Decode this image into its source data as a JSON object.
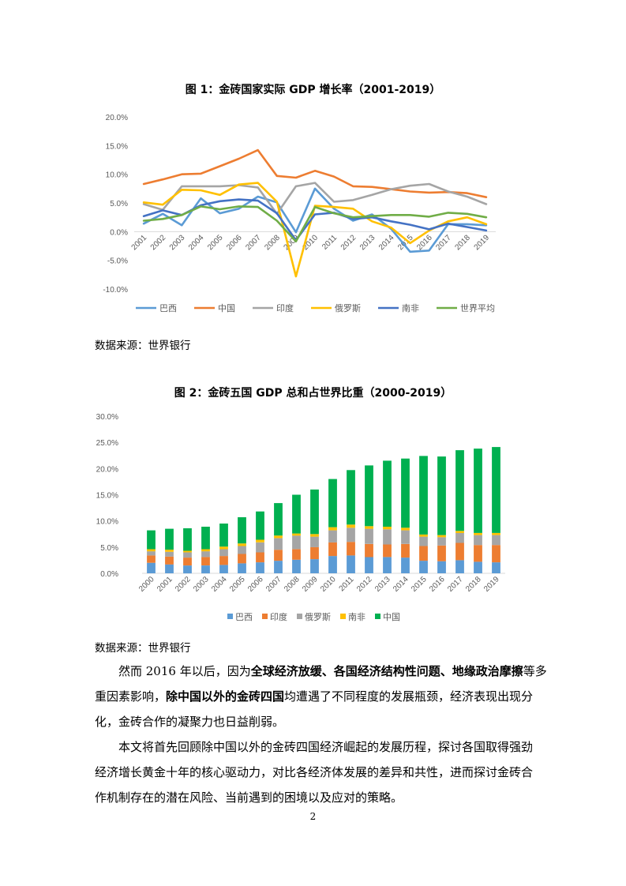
{
  "figure1": {
    "title": "图 1：金砖国家实际 GDP 增长率（2001-2019）",
    "source": "数据来源：世界银行",
    "chart_data": {
      "type": "line",
      "title": "图 1：金砖国家实际 GDP 增长率（2001-2019）",
      "categories": [
        "2001",
        "2002",
        "2003",
        "2004",
        "2005",
        "2006",
        "2007",
        "2008",
        "2009",
        "2010",
        "2011",
        "2012",
        "2013",
        "2014",
        "2015",
        "2016",
        "2017",
        "2018",
        "2019"
      ],
      "ylim": [
        -10,
        20
      ],
      "yticks": [
        "20.0%",
        "15.0%",
        "10.0%",
        "5.0%",
        "0.0%",
        "-5.0%",
        "-10.0%"
      ],
      "legend_position": "bottom",
      "series": [
        {
          "name": "巴西",
          "color": "#5b9bd5",
          "values": [
            1.4,
            3.1,
            1.1,
            5.8,
            3.2,
            4.0,
            6.1,
            5.1,
            -0.1,
            7.5,
            4.0,
            1.9,
            3.0,
            0.5,
            -3.5,
            -3.3,
            1.3,
            1.3,
            1.1
          ]
        },
        {
          "name": "中国",
          "color": "#ed7d31",
          "values": [
            8.3,
            9.1,
            10.0,
            10.1,
            11.4,
            12.7,
            14.2,
            9.7,
            9.4,
            10.6,
            9.6,
            7.9,
            7.8,
            7.4,
            7.0,
            6.8,
            6.9,
            6.7,
            6.0
          ]
        },
        {
          "name": "印度",
          "color": "#a5a5a5",
          "values": [
            4.8,
            3.8,
            7.9,
            7.9,
            7.9,
            8.1,
            7.7,
            3.1,
            7.9,
            8.5,
            5.2,
            5.5,
            6.4,
            7.4,
            8.0,
            8.3,
            7.0,
            6.1,
            4.8
          ]
        },
        {
          "name": "俄罗斯",
          "color": "#ffc000",
          "values": [
            5.1,
            4.7,
            7.3,
            7.2,
            6.4,
            8.2,
            8.5,
            5.2,
            -7.8,
            4.5,
            4.3,
            4.0,
            1.8,
            0.7,
            -2.0,
            0.2,
            1.8,
            2.5,
            1.3
          ]
        },
        {
          "name": "南非",
          "color": "#4472c4",
          "values": [
            2.7,
            3.7,
            2.9,
            4.6,
            5.3,
            5.6,
            5.4,
            3.2,
            -1.5,
            3.0,
            3.3,
            2.2,
            2.5,
            1.8,
            1.2,
            0.4,
            1.4,
            0.8,
            0.2
          ]
        },
        {
          "name": "世界平均",
          "color": "#70ad47",
          "values": [
            1.9,
            2.2,
            2.9,
            4.4,
            3.9,
            4.4,
            4.3,
            1.9,
            -1.7,
            4.3,
            3.2,
            2.5,
            2.7,
            2.9,
            2.9,
            2.6,
            3.3,
            3.1,
            2.5
          ]
        }
      ]
    }
  },
  "figure2": {
    "title": "图 2：金砖五国 GDP 总和占世界比重（2000-2019）",
    "source": "数据来源：世界银行",
    "chart_data": {
      "type": "bar",
      "stacked": true,
      "title": "图 2：金砖五国 GDP 总和占世界比重（2000-2019）",
      "categories": [
        "2000",
        "2001",
        "2002",
        "2003",
        "2004",
        "2005",
        "2006",
        "2007",
        "2008",
        "2009",
        "2010",
        "2011",
        "2012",
        "2013",
        "2014",
        "2015",
        "2016",
        "2017",
        "2018",
        "2019"
      ],
      "ylim": [
        0,
        30
      ],
      "yticks": [
        "30.0%",
        "25.0%",
        "20.0%",
        "15.0%",
        "10.0%",
        "5.0%",
        "0.0%"
      ],
      "legend_position": "bottom",
      "series": [
        {
          "name": "巴西",
          "color": "#5b9bd5",
          "values": [
            2.0,
            1.7,
            1.5,
            1.5,
            1.6,
            1.9,
            2.1,
            2.4,
            2.6,
            2.7,
            3.3,
            3.4,
            3.1,
            3.1,
            3.0,
            2.4,
            2.3,
            2.5,
            2.2,
            2.1
          ]
        },
        {
          "name": "印度",
          "color": "#ed7d31",
          "values": [
            1.4,
            1.5,
            1.5,
            1.6,
            1.7,
            1.8,
            1.9,
            2.1,
            2.0,
            2.3,
            2.6,
            2.6,
            2.5,
            2.4,
            2.6,
            2.8,
            3.0,
            3.3,
            3.2,
            3.3
          ]
        },
        {
          "name": "俄罗斯",
          "color": "#a5a5a5",
          "values": [
            0.8,
            0.9,
            1.0,
            1.1,
            1.3,
            1.5,
            1.9,
            2.2,
            2.6,
            2.0,
            2.3,
            2.7,
            2.9,
            2.9,
            2.6,
            1.8,
            1.6,
            1.9,
            1.9,
            1.9
          ]
        },
        {
          "name": "南非",
          "color": "#ffc000",
          "values": [
            0.4,
            0.4,
            0.3,
            0.4,
            0.5,
            0.5,
            0.5,
            0.5,
            0.4,
            0.5,
            0.6,
            0.6,
            0.5,
            0.5,
            0.5,
            0.4,
            0.4,
            0.4,
            0.4,
            0.4
          ]
        },
        {
          "name": "中国",
          "color": "#00b050",
          "values": [
            3.6,
            4.0,
            4.3,
            4.3,
            4.4,
            5.0,
            5.4,
            6.2,
            7.4,
            8.5,
            9.2,
            10.4,
            11.6,
            12.6,
            13.2,
            15.0,
            15.0,
            15.4,
            16.1,
            16.4
          ]
        }
      ]
    }
  },
  "paragraph1": {
    "line1": {
      "pre": "然而 2016 年以后，因为",
      "bold": "全球经济放缓、各国经济结构性问题、地缘政治摩擦",
      "post": "等多"
    },
    "line2": {
      "pre": "重因素影响，",
      "bold": "除中国以外的金砖四国",
      "post": "均遭遇了不同程度的发展瓶颈，经济表现出现分"
    },
    "line3": "化，金砖合作的凝聚力也日益削弱。"
  },
  "paragraph2": {
    "line1": "本文将首先回顾除中国以外的金砖四国经济崛起的发展历程，探讨各国取得强劲",
    "line2": "经济增长黄金十年的核心驱动力，对比各经济体发展的差异和共性，进而探讨金砖合",
    "line3": "作机制存在的潜在风险、当前遇到的困境以及应对的策略。"
  },
  "page_number": "2"
}
